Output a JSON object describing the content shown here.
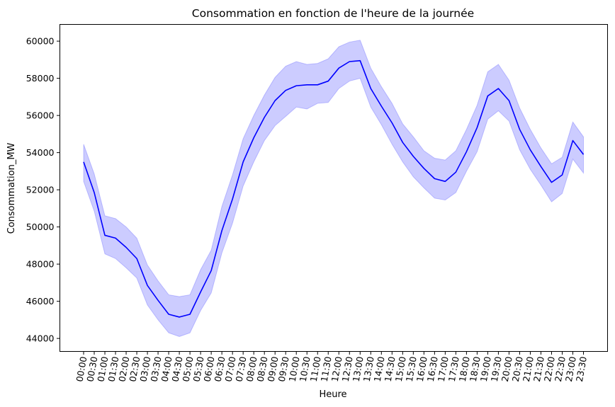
{
  "chart_data": {
    "type": "line",
    "title": "Consommation en fonction de l'heure de la journée",
    "xlabel": "Heure",
    "ylabel": "Consommation_MW",
    "ylim": [
      43300,
      60900
    ],
    "yticks": [
      44000,
      46000,
      48000,
      50000,
      52000,
      54000,
      56000,
      58000,
      60000
    ],
    "grid": false,
    "legend": "none",
    "line_color": "#0000ff",
    "band_color": "#0000ff",
    "categories": [
      "00:00",
      "00:30",
      "01:00",
      "01:30",
      "02:00",
      "02:30",
      "03:00",
      "03:30",
      "04:00",
      "04:30",
      "05:00",
      "05:30",
      "06:00",
      "06:30",
      "07:00",
      "07:30",
      "08:00",
      "08:30",
      "09:00",
      "09:30",
      "10:00",
      "10:30",
      "11:00",
      "11:30",
      "12:00",
      "12:30",
      "13:00",
      "13:30",
      "14:00",
      "14:30",
      "15:00",
      "15:30",
      "16:00",
      "16:30",
      "17:00",
      "17:30",
      "18:00",
      "18:30",
      "19:00",
      "19:30",
      "20:00",
      "20:30",
      "21:00",
      "21:30",
      "22:00",
      "22:30",
      "23:00",
      "23:30"
    ],
    "series": [
      {
        "values": [
          53500,
          51850,
          49550,
          49400,
          48900,
          48300,
          46850,
          46050,
          45300,
          45150,
          45300,
          46500,
          47650,
          49800,
          51500,
          53500,
          54800,
          55900,
          56800,
          57350,
          57600,
          57650,
          57650,
          57850,
          58550,
          58900,
          58950,
          57450,
          56500,
          55600,
          54550,
          53800,
          53150,
          52600,
          52450,
          52950,
          54050,
          55350,
          57050,
          57450,
          56800,
          55250,
          54150,
          53250,
          52400,
          52800,
          54650,
          53900
        ],
        "lower": [
          52450,
          50850,
          48550,
          48300,
          47800,
          47250,
          45800,
          45000,
          44300,
          44100,
          44300,
          45500,
          46450,
          48600,
          50200,
          52200,
          53500,
          54650,
          55450,
          55950,
          56450,
          56350,
          56650,
          56700,
          57450,
          57850,
          58000,
          56450,
          55500,
          54450,
          53500,
          52700,
          52100,
          51550,
          51450,
          51850,
          53000,
          54050,
          55800,
          56250,
          55700,
          54150,
          53100,
          52250,
          51350,
          51800,
          53650,
          52900
        ],
        "upper": [
          54450,
          52850,
          50600,
          50450,
          50000,
          49400,
          47950,
          47100,
          46350,
          46250,
          46350,
          47700,
          48750,
          51100,
          52800,
          54750,
          56000,
          57100,
          58050,
          58650,
          58900,
          58750,
          58800,
          59050,
          59700,
          59950,
          60050,
          58550,
          57550,
          56650,
          55550,
          54850,
          54100,
          53700,
          53600,
          54100,
          55250,
          56550,
          58350,
          58750,
          57900,
          56400,
          55250,
          54250,
          53400,
          53750,
          55650,
          54850
        ]
      }
    ]
  }
}
